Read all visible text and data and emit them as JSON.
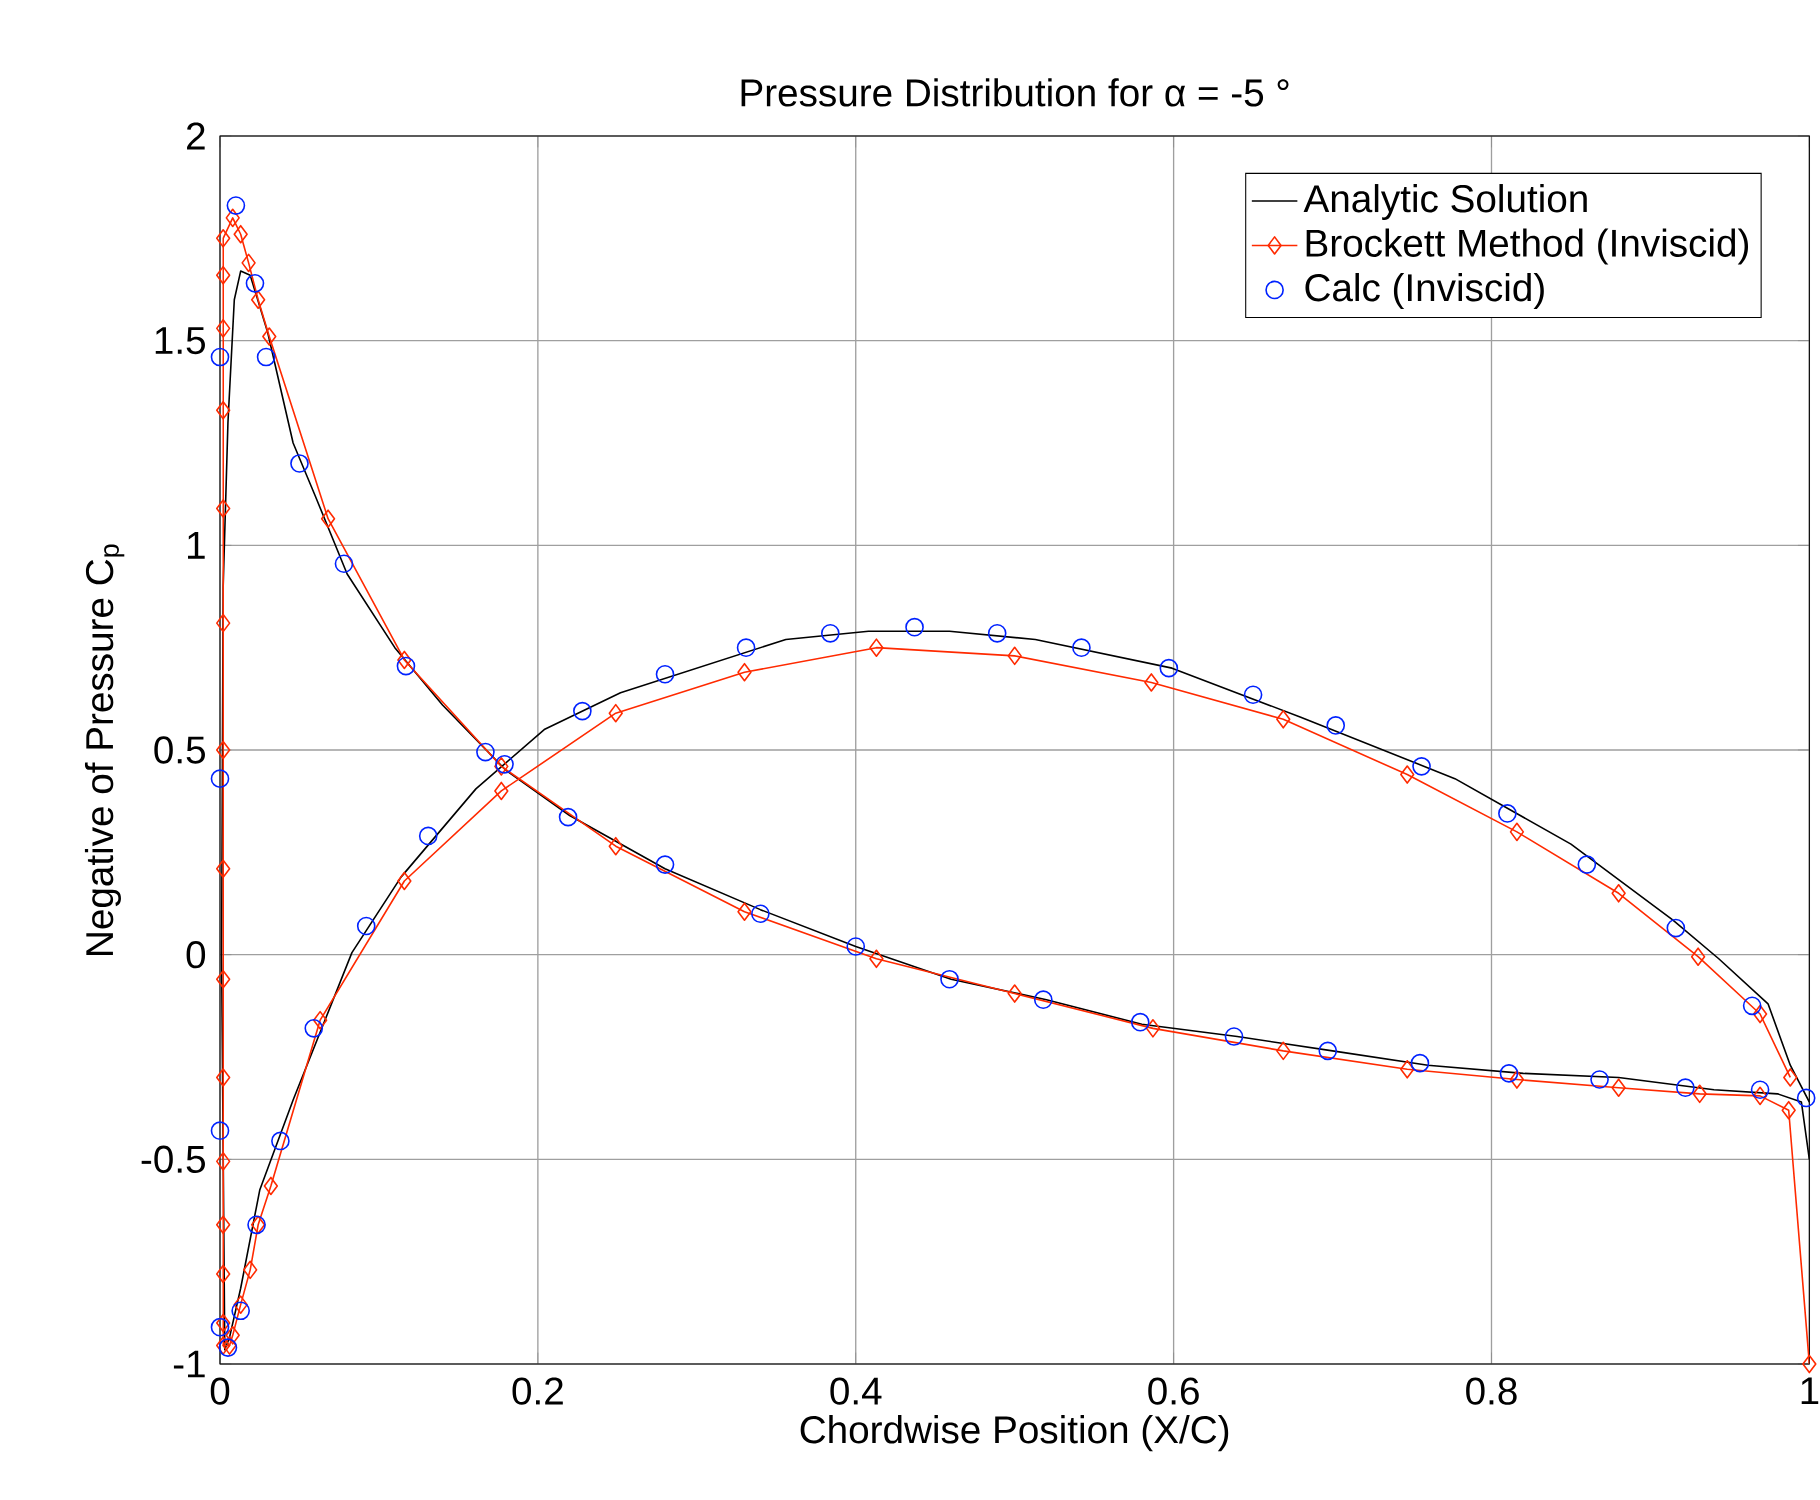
{
  "chart_data": {
    "type": "line",
    "title": "Pressure Distribution for α = -5 °",
    "xlabel": "Chordwise Position (X/C)",
    "ylabel": "Negative of Pressure C$_{p}$",
    "xlim": [
      0,
      1
    ],
    "ylim": [
      -1,
      2
    ],
    "xticks": [
      0,
      0.2,
      0.4,
      0.6,
      0.8,
      1
    ],
    "yticks": [
      -1,
      -0.5,
      0,
      0.5,
      1,
      1.5,
      2
    ],
    "grid": true,
    "legend": "top right",
    "series": [
      {
        "name": "Analytic Solution",
        "marker": "none",
        "color": "#000000",
        "x": [
          1.0,
          0.988,
          0.974,
          0.943,
          0.914,
          0.85,
          0.777,
          0.68,
          0.599,
          0.513,
          0.459,
          0.408,
          0.356,
          0.252,
          0.204,
          0.161,
          0.114,
          0.083,
          0.046,
          0.025,
          0.013,
          0.006,
          0.003,
          0.001,
          0.002,
          0.005,
          0.009,
          0.013,
          0.019,
          0.03,
          0.046,
          0.06,
          0.08,
          0.11,
          0.14,
          0.18,
          0.22,
          0.28,
          0.34,
          0.4,
          0.46,
          0.52,
          0.58,
          0.64,
          0.7,
          0.76,
          0.82,
          0.88,
          0.94,
          0.98,
          0.995,
          1.0
        ],
        "values": [
          -0.36,
          -0.27,
          -0.12,
          -0.01,
          0.085,
          0.27,
          0.43,
          0.58,
          0.7,
          0.77,
          0.79,
          0.79,
          0.77,
          0.64,
          0.55,
          0.405,
          0.19,
          0.005,
          -0.355,
          -0.575,
          -0.815,
          -0.935,
          -0.965,
          0.0,
          0.9,
          1.3,
          1.6,
          1.67,
          1.66,
          1.52,
          1.25,
          1.12,
          0.93,
          0.75,
          0.61,
          0.45,
          0.34,
          0.21,
          0.11,
          0.02,
          -0.06,
          -0.11,
          -0.17,
          -0.2,
          -0.235,
          -0.27,
          -0.29,
          -0.3,
          -0.33,
          -0.34,
          -0.36,
          -0.5
        ]
      },
      {
        "name": "Brockett Method (Inviscid)",
        "marker": "diamond",
        "color": "#ff2a00",
        "x": [
          0.988,
          0.969,
          0.93,
          0.88,
          0.816,
          0.747,
          0.669,
          0.586,
          0.5,
          0.413,
          0.33,
          0.249,
          0.177,
          0.116,
          0.063,
          0.032,
          0.024,
          0.019,
          0.013,
          0.008,
          0.006,
          0.002,
          0.002,
          0.002,
          0.002,
          0.002,
          0.002,
          0.002,
          0.002,
          0.002,
          0.002,
          0.002,
          0.002,
          0.002,
          0.002,
          0.002,
          0.008,
          0.013,
          0.018,
          0.024,
          0.031,
          0.068,
          0.116,
          0.177,
          0.249,
          0.33,
          0.413,
          0.5,
          0.587,
          0.669,
          0.747,
          0.816,
          0.88,
          0.931,
          0.969,
          0.987,
          1.0
        ],
        "values": [
          -0.3,
          -0.145,
          -0.005,
          0.15,
          0.3,
          0.44,
          0.575,
          0.665,
          0.73,
          0.75,
          0.69,
          0.59,
          0.4,
          0.18,
          -0.16,
          -0.565,
          -0.66,
          -0.77,
          -0.855,
          -0.93,
          -0.955,
          -0.955,
          -0.9,
          -0.78,
          -0.66,
          -0.505,
          -0.3,
          -0.06,
          0.21,
          0.5,
          0.81,
          1.09,
          1.33,
          1.53,
          1.66,
          1.75,
          1.8,
          1.76,
          1.69,
          1.6,
          1.51,
          1.065,
          0.72,
          0.46,
          0.265,
          0.105,
          -0.01,
          -0.095,
          -0.18,
          -0.235,
          -0.28,
          -0.305,
          -0.325,
          -0.34,
          -0.345,
          -0.38,
          -1.0
        ]
      },
      {
        "name": "Calc (Inviscid)",
        "type": "scatter",
        "marker": "circle",
        "color": "#0022ff",
        "x": [
          0.01,
          0.022,
          0.0,
          0.029,
          0.05,
          0.078,
          0.117,
          0.167,
          0.179,
          0.219,
          0.28,
          0.34,
          0.4,
          0.459,
          0.518,
          0.579,
          0.638,
          0.697,
          0.755,
          0.811,
          0.868,
          0.922,
          0.969,
          0.998,
          0.0,
          0.0,
          0.0,
          0.005,
          0.013,
          0.023,
          0.038,
          0.059,
          0.092,
          0.131,
          0.228,
          0.28,
          0.331,
          0.384,
          0.437,
          0.489,
          0.542,
          0.597,
          0.65,
          0.702,
          0.756,
          0.81,
          0.86,
          0.916,
          0.964
        ],
        "values": [
          1.83,
          1.64,
          1.46,
          1.46,
          1.2,
          0.955,
          0.705,
          0.495,
          0.465,
          0.336,
          0.22,
          0.1,
          0.02,
          -0.06,
          -0.11,
          -0.165,
          -0.2,
          -0.235,
          -0.265,
          -0.29,
          -0.305,
          -0.325,
          -0.33,
          -0.35,
          0.43,
          -0.43,
          -0.91,
          -0.96,
          -0.87,
          -0.66,
          -0.455,
          -0.18,
          0.07,
          0.29,
          0.595,
          0.685,
          0.75,
          0.785,
          0.8,
          0.785,
          0.75,
          0.7,
          0.635,
          0.56,
          0.46,
          0.345,
          0.22,
          0.065,
          -0.125
        ]
      }
    ]
  }
}
